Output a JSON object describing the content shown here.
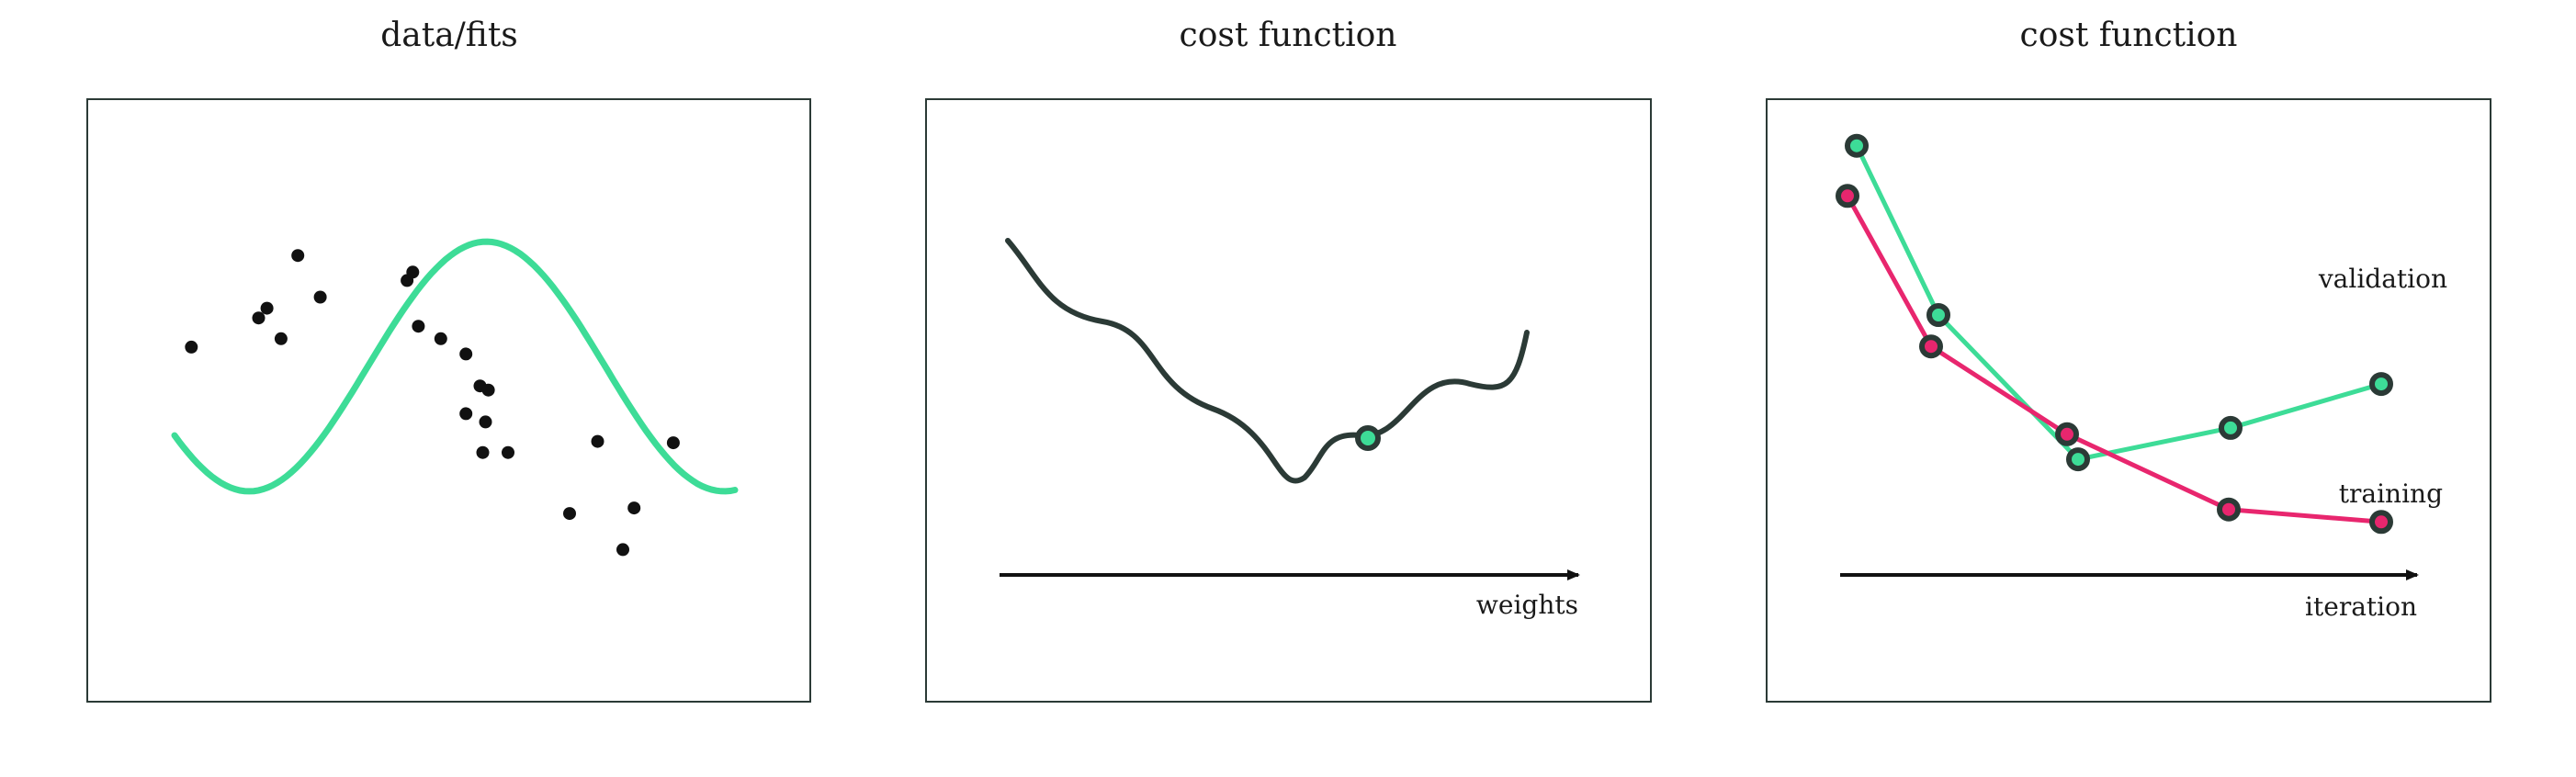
{
  "panels": [
    {
      "title": "data/fits"
    },
    {
      "title": "cost function",
      "axis_label": "weights"
    },
    {
      "title": "cost function",
      "axis_label": "iteration",
      "series_labels": {
        "validation": "validation",
        "training": "training"
      }
    }
  ],
  "colors": {
    "fit": "#3ddc97",
    "training": "#e8266e",
    "validation": "#3ddc97",
    "cost": "#2b3a36",
    "points": "#111111",
    "frame": "#2b3a36"
  },
  "chart_data": [
    {
      "type": "scatter",
      "title": "data/fits",
      "points": [
        [
          -0.94,
          0.24
        ],
        [
          -0.7,
          0.45
        ],
        [
          -0.56,
          0.9
        ],
        [
          -0.62,
          0.3
        ],
        [
          -0.67,
          0.52
        ],
        [
          -0.48,
          0.6
        ],
        [
          -0.17,
          0.72
        ],
        [
          -0.15,
          0.78
        ],
        [
          -0.05,
          0.3
        ],
        [
          -0.13,
          0.39
        ],
        [
          0.04,
          0.19
        ],
        [
          0.04,
          -0.24
        ],
        [
          0.09,
          -0.04
        ],
        [
          0.11,
          -0.3
        ],
        [
          0.12,
          -0.07
        ],
        [
          0.1,
          -0.52
        ],
        [
          0.19,
          -0.52
        ],
        [
          0.41,
          -0.96
        ],
        [
          0.51,
          -0.44
        ],
        [
          0.6,
          -1.22
        ],
        [
          0.64,
          -0.92
        ],
        [
          0.78,
          -0.45
        ]
      ],
      "fit_curve": "sinusoid",
      "x_range": [
        -1,
        1
      ],
      "y_range": [
        -1.35,
        1.1
      ]
    },
    {
      "type": "line",
      "title": "cost function",
      "xlabel": "weights",
      "marker_at": 0.62
    },
    {
      "type": "line",
      "title": "cost function",
      "xlabel": "iteration",
      "x": [
        1,
        2,
        3,
        4,
        5
      ],
      "series": [
        {
          "name": "validation",
          "values": [
            0.98,
            0.71,
            0.48,
            0.53,
            0.6
          ]
        },
        {
          "name": "training",
          "values": [
            0.9,
            0.66,
            0.52,
            0.4,
            0.38
          ]
        }
      ]
    }
  ]
}
